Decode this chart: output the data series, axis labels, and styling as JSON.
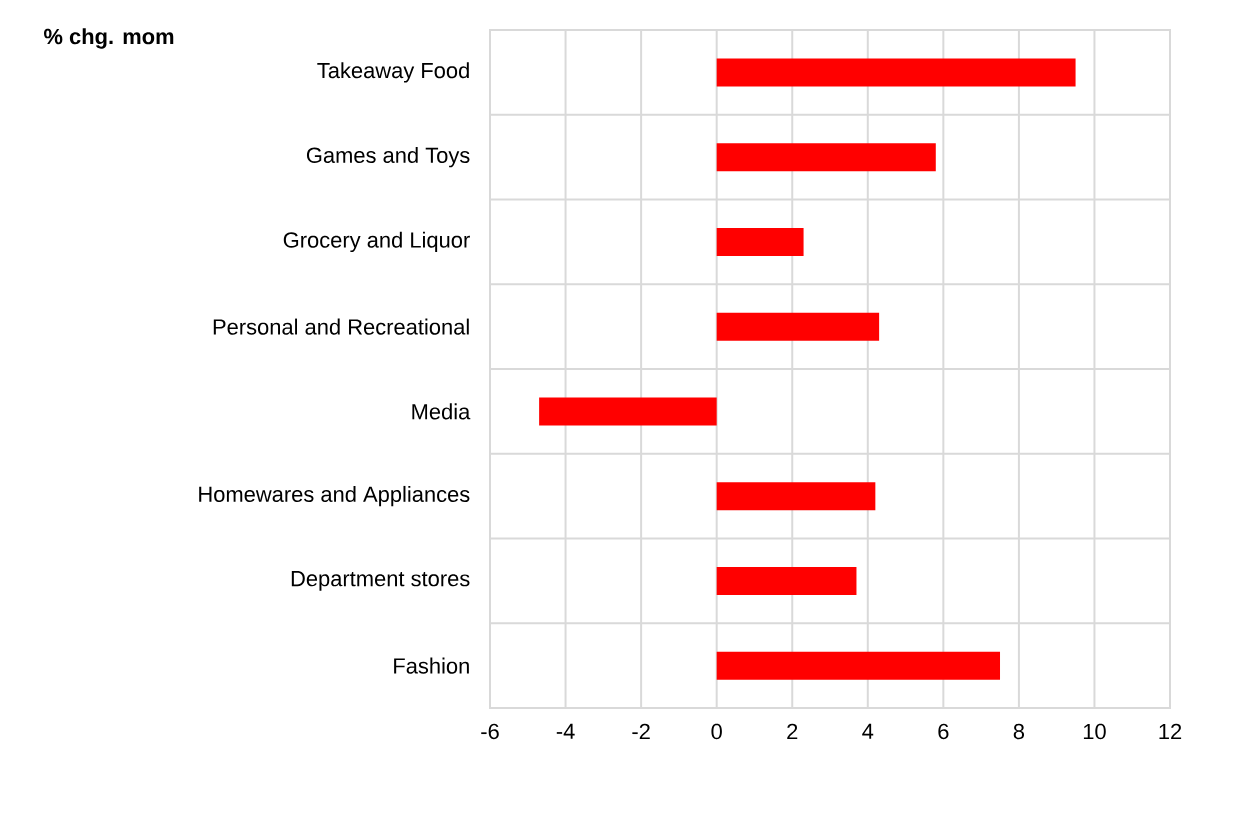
{
  "chart_data": {
    "type": "bar",
    "orientation": "horizontal",
    "title": "**% chg. mom**",
    "categories": [
      "Takeaway Food",
      "Games and Toys",
      "Grocery and Liquor",
      "Personal and Recreational",
      "Media",
      "Homewares and Appliances",
      "Department stores",
      "Fashion"
    ],
    "values": [
      9.5,
      5.8,
      2.3,
      4.3,
      -4.7,
      4.2,
      3.7,
      7.5
    ],
    "color": "#ff0000",
    "xlim": [
      -6,
      12
    ],
    "xticks": [
      -6,
      -4,
      -2,
      0,
      2,
      4,
      6,
      8,
      10,
      12
    ],
    "grid": true
  }
}
